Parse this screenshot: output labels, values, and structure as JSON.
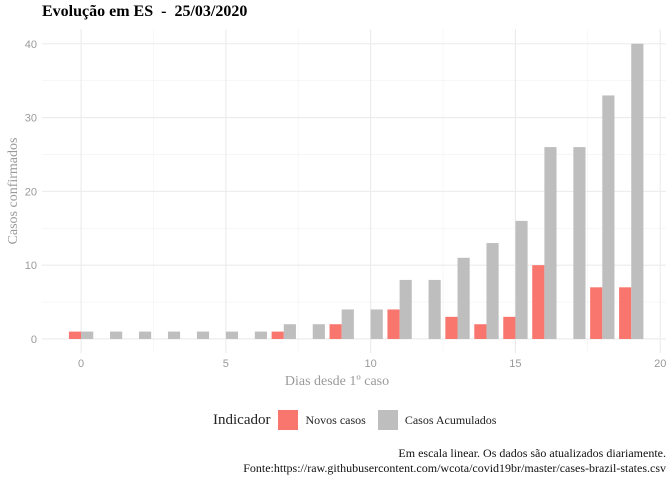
{
  "chart_data": {
    "type": "bar",
    "title": "Evolução em ES  -  25/03/2020",
    "xlabel": "Dias desde 1º caso",
    "ylabel": "Casos confirmados",
    "x": [
      0,
      1,
      2,
      3,
      4,
      5,
      6,
      7,
      8,
      9,
      10,
      11,
      12,
      13,
      14,
      15,
      16,
      17,
      18,
      19
    ],
    "xlim": [
      -1.35,
      20.2
    ],
    "ylim": [
      -1.9,
      42
    ],
    "xticks": [
      0,
      5,
      10,
      15,
      20
    ],
    "yticks": [
      0,
      10,
      20,
      30,
      40
    ],
    "grid": true,
    "legend_position": "bottom",
    "series": [
      {
        "name": "Novos casos",
        "color": "#F8766D",
        "values": [
          1,
          0,
          0,
          0,
          0,
          0,
          0,
          1,
          0,
          2,
          0,
          4,
          0,
          3,
          2,
          3,
          10,
          0,
          7,
          7
        ]
      },
      {
        "name": "Casos Acumulados",
        "color": "#BEBEBE",
        "values": [
          1,
          1,
          1,
          1,
          1,
          1,
          1,
          2,
          2,
          4,
          4,
          8,
          8,
          11,
          13,
          16,
          26,
          26,
          33,
          40
        ]
      }
    ]
  },
  "legend": {
    "title": "Indicador",
    "items": [
      "Novos casos",
      "Casos Acumulados"
    ]
  },
  "caption": {
    "line1": "Em escala linear. Os dados são atualizados diariamente.",
    "line2": "Fonte:https://raw.githubusercontent.com/wcota/covid19br/master/cases-brazil-states.csv"
  }
}
